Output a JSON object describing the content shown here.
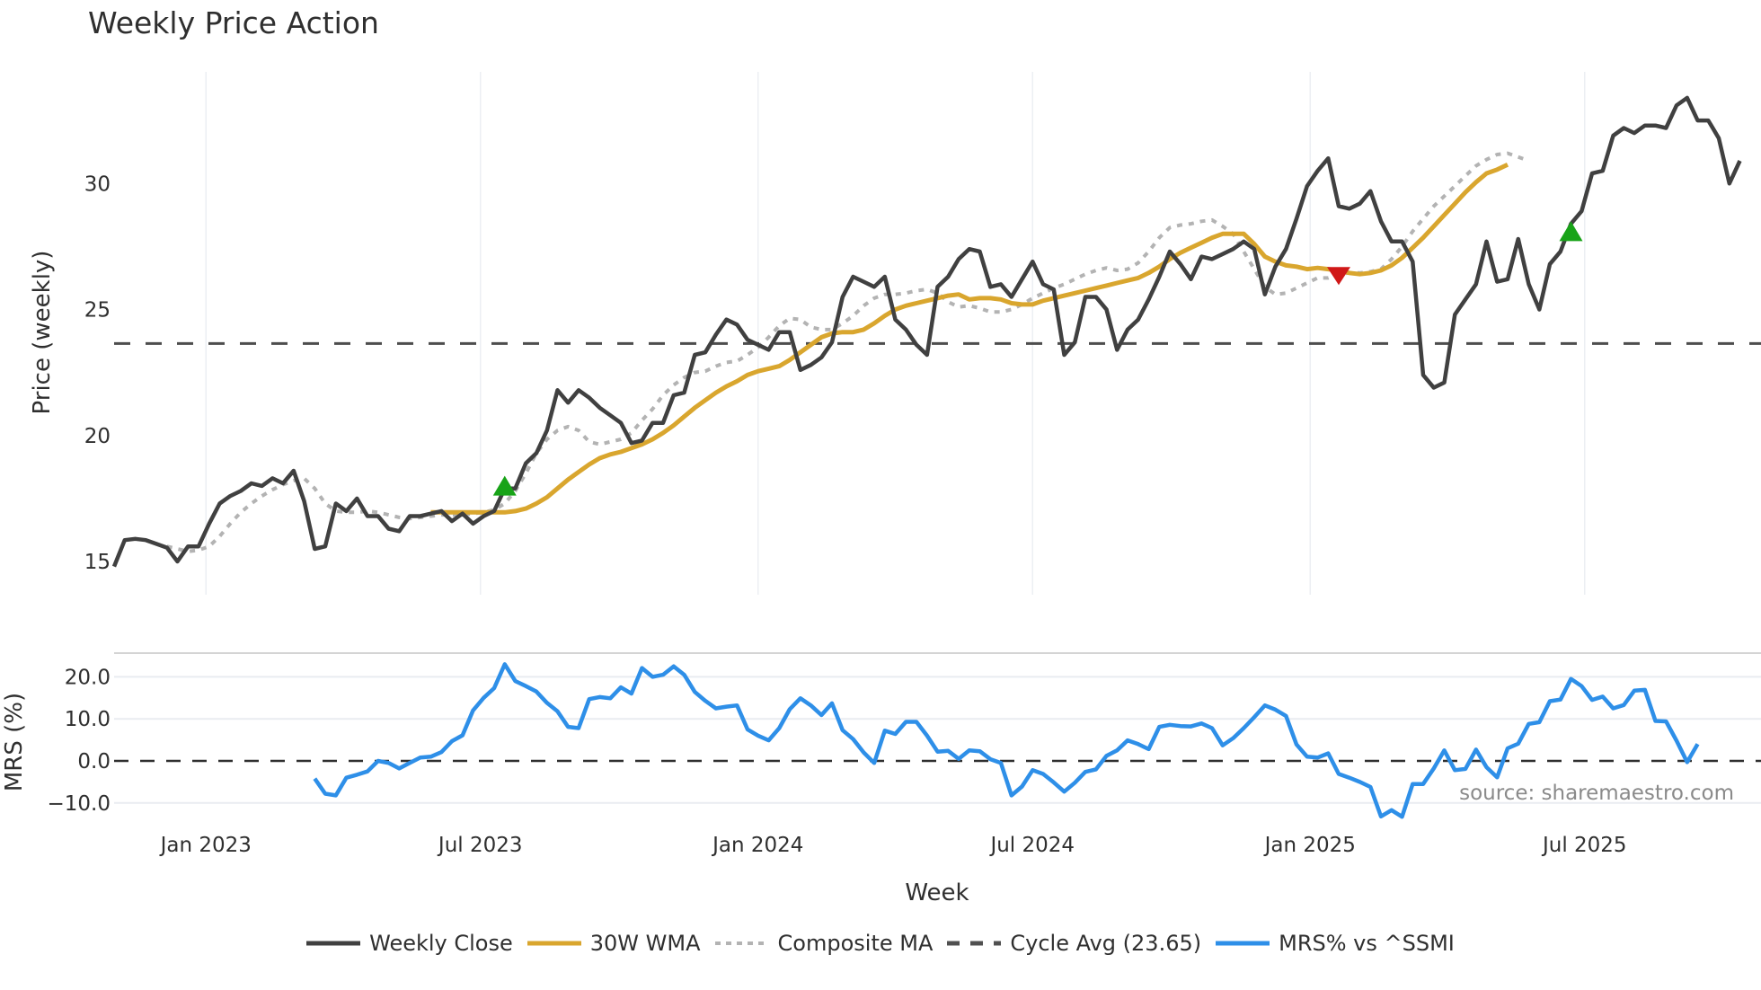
{
  "title": "Weekly Price Action",
  "source_note": "source: sharemaestro.com",
  "legend": [
    {
      "label": "Weekly Close",
      "color": "#404040",
      "style": "solid"
    },
    {
      "label": "30W WMA",
      "color": "#d9a62e",
      "style": "solid"
    },
    {
      "label": "Composite MA",
      "color": "#b3b3b3",
      "style": "dotted"
    },
    {
      "label": "Cycle Avg (23.65)",
      "color": "#505050",
      "style": "dashed"
    },
    {
      "label": "MRS% vs ^SSMI",
      "color": "#2e8fe8",
      "style": "solid"
    }
  ],
  "chart_data": [
    {
      "type": "line",
      "title": "Weekly Price Action",
      "xlabel": "",
      "ylabel": "Price (weekly)",
      "yticks": [
        15,
        20,
        25,
        30
      ],
      "ylim": [
        14.6,
        33.8
      ],
      "xticks": [
        "Jan 2023",
        "Jul 2023",
        "Jan 2024",
        "Jul 2024",
        "Jan 2025",
        "Jul 2025"
      ],
      "x_start_week_offset": -9,
      "grid": {
        "x": true,
        "y": false
      },
      "reference_lines": [
        {
          "name": "Cycle Avg",
          "value": 23.65,
          "style": "dashed"
        }
      ],
      "series": [
        {
          "name": "Weekly Close",
          "values": [
            14.8,
            15.85,
            15.9,
            15.85,
            15.7,
            15.55,
            15.0,
            15.6,
            15.6,
            16.5,
            17.3,
            17.6,
            17.8,
            18.1,
            18.0,
            18.3,
            18.1,
            18.6,
            17.4,
            15.5,
            15.6,
            17.3,
            17.0,
            17.5,
            16.8,
            16.8,
            16.3,
            16.2,
            16.8,
            16.8,
            16.9,
            17.0,
            16.6,
            16.9,
            16.5,
            16.8,
            17.0,
            17.9,
            17.9,
            18.9,
            19.3,
            20.2,
            21.8,
            21.3,
            21.8,
            21.5,
            21.1,
            20.8,
            20.5,
            19.7,
            19.8,
            20.5,
            20.5,
            21.6,
            21.7,
            23.2,
            23.3,
            24.0,
            24.6,
            24.4,
            23.8,
            23.6,
            23.4,
            24.1,
            24.1,
            22.6,
            22.8,
            23.1,
            23.7,
            25.5,
            26.3,
            26.1,
            25.9,
            26.3,
            24.6,
            24.2,
            23.6,
            23.2,
            25.9,
            26.3,
            27.0,
            27.4,
            27.3,
            25.9,
            26.0,
            25.5,
            26.2,
            26.9,
            26.0,
            25.8,
            23.2,
            23.7,
            25.5,
            25.5,
            25.0,
            23.4,
            24.2,
            24.6,
            25.4,
            26.3,
            27.3,
            26.8,
            26.2,
            27.1,
            27.0,
            27.2,
            27.4,
            27.7,
            27.4,
            25.6,
            26.7,
            27.4,
            28.6,
            29.9,
            30.5,
            31.0,
            29.1,
            29.0,
            29.2,
            29.7,
            28.5,
            27.7,
            27.7,
            26.9,
            22.4,
            21.9,
            22.1,
            24.8,
            25.4,
            26.0,
            27.7,
            26.1,
            26.2,
            27.8,
            26.0,
            25.0,
            26.8,
            27.3,
            28.4,
            28.9,
            30.4,
            30.5,
            31.9,
            32.2,
            32.0,
            32.3,
            32.3,
            32.2,
            33.1,
            33.4,
            32.5,
            32.5,
            31.8,
            30.0,
            30.9
          ]
        },
        {
          "name": "30W WMA",
          "start_index": 30,
          "values": [
            16.95,
            16.95,
            16.95,
            16.95,
            16.95,
            16.95,
            16.95,
            16.95,
            17.0,
            17.1,
            17.3,
            17.55,
            17.9,
            18.25,
            18.55,
            18.85,
            19.1,
            19.25,
            19.35,
            19.5,
            19.65,
            19.85,
            20.1,
            20.4,
            20.75,
            21.1,
            21.4,
            21.7,
            21.95,
            22.15,
            22.4,
            22.55,
            22.65,
            22.75,
            23.0,
            23.3,
            23.6,
            23.9,
            24.05,
            24.1,
            24.1,
            24.2,
            24.45,
            24.75,
            25.0,
            25.15,
            25.25,
            25.35,
            25.45,
            25.55,
            25.6,
            25.4,
            25.45,
            25.45,
            25.4,
            25.25,
            25.2,
            25.2,
            25.35,
            25.45,
            25.55,
            25.65,
            25.75,
            25.85,
            25.95,
            26.05,
            26.15,
            26.25,
            26.45,
            26.7,
            27.0,
            27.25,
            27.45,
            27.65,
            27.85,
            28.0,
            28.0,
            28.0,
            27.6,
            27.1,
            26.9,
            26.75,
            26.7,
            26.6,
            26.65,
            26.6,
            26.55,
            26.45,
            26.4,
            26.45,
            26.55,
            26.75,
            27.05,
            27.45,
            27.85,
            28.3,
            28.75,
            29.2,
            29.65,
            30.05,
            30.4,
            30.55,
            30.75
          ]
        },
        {
          "name": "Composite MA",
          "start_index": 5,
          "values": [
            15.6,
            15.5,
            15.4,
            15.45,
            15.6,
            16.0,
            16.5,
            16.95,
            17.3,
            17.6,
            17.85,
            18.05,
            18.2,
            18.3,
            17.9,
            17.3,
            17.0,
            16.95,
            16.95,
            17.0,
            16.95,
            16.85,
            16.75,
            16.7,
            16.75,
            16.8,
            16.85,
            16.85,
            16.85,
            16.9,
            16.95,
            17.05,
            17.3,
            17.8,
            18.5,
            19.3,
            19.85,
            20.2,
            20.35,
            20.2,
            19.75,
            19.65,
            19.75,
            19.85,
            20.1,
            20.6,
            21.05,
            21.6,
            22.0,
            22.3,
            22.5,
            22.55,
            22.75,
            22.9,
            22.95,
            23.2,
            23.5,
            23.9,
            24.35,
            24.65,
            24.6,
            24.3,
            24.2,
            24.2,
            24.45,
            24.75,
            25.15,
            25.45,
            25.6,
            25.6,
            25.65,
            25.75,
            25.8,
            25.65,
            25.3,
            25.1,
            25.15,
            25.05,
            24.9,
            24.9,
            25.0,
            25.2,
            25.45,
            25.65,
            25.85,
            26.0,
            26.2,
            26.4,
            26.55,
            26.65,
            26.55,
            26.6,
            26.85,
            27.3,
            27.85,
            28.25,
            28.35,
            28.4,
            28.5,
            28.55,
            28.3,
            28.0,
            27.3,
            26.6,
            25.9,
            25.6,
            25.65,
            25.85,
            26.05,
            26.25,
            26.25,
            26.4,
            26.45,
            26.45,
            26.5,
            26.6,
            27.0,
            27.5,
            28.1,
            28.6,
            29.1,
            29.5,
            29.9,
            30.3,
            30.7,
            30.95,
            31.15,
            31.2,
            31.05,
            30.9
          ]
        }
      ],
      "markers": [
        {
          "type": "buy",
          "shape": "triangle-up",
          "color": "#18a318",
          "week_index": 37,
          "value": 17.9
        },
        {
          "type": "sell",
          "shape": "triangle-down",
          "color": "#d01818",
          "week_index": 116,
          "value": 26.4
        },
        {
          "type": "buy",
          "shape": "triangle-up",
          "color": "#18a318",
          "week_index": 138,
          "value": 28.0
        }
      ]
    },
    {
      "type": "line",
      "title": "",
      "xlabel": "Week",
      "ylabel": "MRS (%)",
      "yticks": [
        -10.0,
        0.0,
        10.0,
        20.0
      ],
      "ytick_labels": [
        "−10.0",
        "0.0",
        "10.0",
        "20.0"
      ],
      "ylim": [
        -14.5,
        25.5
      ],
      "grid": {
        "x": false,
        "y": true
      },
      "reference_lines": [
        {
          "name": "zero",
          "value": 0.0,
          "style": "dashed"
        }
      ],
      "series": [
        {
          "name": "MRS% vs ^SSMI",
          "start_index": 19,
          "values": [
            -4.2,
            -7.8,
            -8.2,
            -4.0,
            -3.3,
            -2.5,
            0.0,
            -0.5,
            -1.8,
            -0.5,
            0.8,
            1.0,
            2.1,
            4.7,
            6.1,
            12.0,
            15.0,
            17.3,
            23.0,
            19.0,
            17.8,
            16.5,
            13.8,
            11.8,
            8.1,
            7.8,
            14.7,
            15.2,
            14.9,
            17.5,
            16.0,
            22.1,
            20.0,
            20.5,
            22.5,
            20.5,
            16.4,
            14.3,
            12.5,
            12.9,
            13.2,
            7.5,
            6.0,
            4.9,
            7.8,
            12.3,
            14.9,
            13.2,
            10.9,
            13.7,
            7.3,
            5.2,
            2.0,
            -0.5,
            7.2,
            6.4,
            9.3,
            9.3,
            6.0,
            2.2,
            2.4,
            0.5,
            2.5,
            2.3,
            0.4,
            -0.5,
            -8.2,
            -6.1,
            -2.2,
            -3.1,
            -5.1,
            -7.3,
            -5.2,
            -2.6,
            -2.0,
            1.2,
            2.5,
            4.9,
            4.0,
            2.8,
            8.1,
            8.6,
            8.3,
            8.2,
            8.9,
            7.8,
            3.7,
            5.4,
            7.8,
            10.4,
            13.2,
            12.2,
            10.7,
            3.9,
            1.0,
            0.8,
            1.8,
            -3.1,
            -4.0,
            -5.0,
            -6.2,
            -13.2,
            -11.7,
            -13.3,
            -5.5,
            -5.5,
            -1.8,
            2.5,
            -2.2,
            -1.9,
            2.7,
            -1.5,
            -3.9,
            3.0,
            4.1,
            8.8,
            9.2,
            14.2,
            14.6,
            19.5,
            17.8,
            14.5,
            15.3,
            12.5,
            13.3,
            16.7,
            16.9,
            9.5,
            9.4,
            4.8,
            -0.3,
            4.0
          ]
        }
      ]
    }
  ]
}
